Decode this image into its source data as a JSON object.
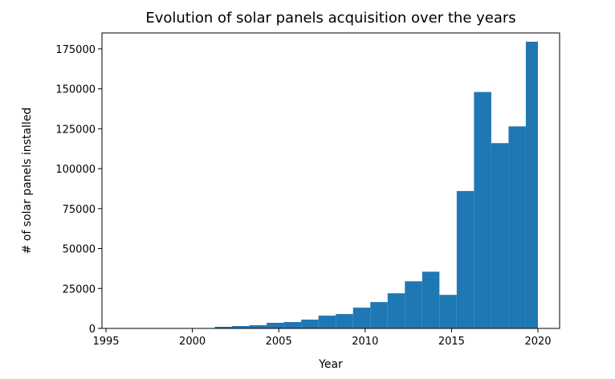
{
  "chart_data": {
    "type": "bar",
    "title": "Evolution of solar panels acquisition over the years",
    "xlabel": "Year",
    "ylabel": "# of solar panels installed",
    "xlim": [
      1995,
      2020
    ],
    "ylim": [
      0,
      185000
    ],
    "xticks": [
      1995,
      2000,
      2005,
      2010,
      2015,
      2020
    ],
    "xtick_labels": [
      "1995",
      "2000",
      "2005",
      "2010",
      "2015",
      "2020"
    ],
    "yticks": [
      0,
      25000,
      50000,
      75000,
      100000,
      125000,
      150000,
      175000
    ],
    "ytick_labels": [
      "0",
      "25000",
      "50000",
      "75000",
      "100000",
      "125000",
      "150000",
      "175000"
    ],
    "bar_color": "#1f77b4",
    "grid": false,
    "bins": [
      {
        "start": 1995.3,
        "end": 1996.3,
        "value": 0
      },
      {
        "start": 1996.3,
        "end": 1997.3,
        "value": 0
      },
      {
        "start": 1997.3,
        "end": 1998.3,
        "value": 0
      },
      {
        "start": 1998.3,
        "end": 1999.3,
        "value": 0
      },
      {
        "start": 1999.3,
        "end": 2000.3,
        "value": 0
      },
      {
        "start": 2000.3,
        "end": 2001.3,
        "value": 200
      },
      {
        "start": 2001.3,
        "end": 2002.3,
        "value": 1000
      },
      {
        "start": 2002.3,
        "end": 2003.3,
        "value": 1500
      },
      {
        "start": 2003.3,
        "end": 2004.3,
        "value": 2000
      },
      {
        "start": 2004.3,
        "end": 2005.3,
        "value": 3500
      },
      {
        "start": 2005.3,
        "end": 2006.3,
        "value": 4000
      },
      {
        "start": 2006.3,
        "end": 2007.3,
        "value": 5500
      },
      {
        "start": 2007.3,
        "end": 2008.3,
        "value": 8000
      },
      {
        "start": 2008.3,
        "end": 2009.3,
        "value": 9000
      },
      {
        "start": 2009.3,
        "end": 2010.3,
        "value": 13000
      },
      {
        "start": 2010.3,
        "end": 2011.3,
        "value": 16500
      },
      {
        "start": 2011.3,
        "end": 2012.3,
        "value": 22000
      },
      {
        "start": 2012.3,
        "end": 2013.3,
        "value": 29500
      },
      {
        "start": 2013.3,
        "end": 2014.3,
        "value": 35500
      },
      {
        "start": 2014.3,
        "end": 2015.3,
        "value": 21000
      },
      {
        "start": 2015.3,
        "end": 2016.3,
        "value": 86000
      },
      {
        "start": 2016.3,
        "end": 2017.3,
        "value": 148000
      },
      {
        "start": 2017.3,
        "end": 2018.3,
        "value": 116000
      },
      {
        "start": 2018.3,
        "end": 2019.3,
        "value": 126500
      },
      {
        "start": 2019.3,
        "end": 2020.0,
        "value": 179500
      }
    ]
  }
}
